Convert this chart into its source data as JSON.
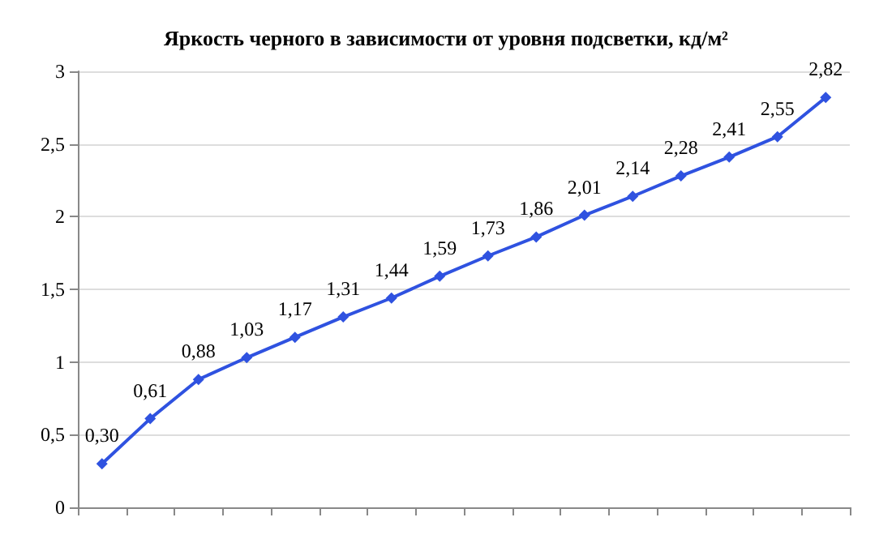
{
  "chart_data": {
    "type": "line",
    "title": "Яркость черного в зависимости от уровня подсветки, кд/м²",
    "categories": [
      null,
      null,
      null,
      null,
      null,
      null,
      null,
      null,
      null,
      null,
      null,
      null,
      null,
      null,
      null,
      null
    ],
    "series": [
      {
        "color": "#2f52e0",
        "values": [
          0.3,
          0.61,
          0.88,
          1.03,
          1.17,
          1.31,
          1.44,
          1.59,
          1.73,
          1.86,
          2.01,
          2.14,
          2.28,
          2.41,
          2.55,
          2.82
        ],
        "value_labels": [
          "0,30",
          "0,61",
          "0,88",
          "1,03",
          "1,17",
          "1,31",
          "1,44",
          "1,59",
          "1,73",
          "1,86",
          "2,01",
          "2,14",
          "2,28",
          "2,41",
          "2,55",
          "2,82"
        ]
      }
    ],
    "ylim": [
      0,
      3
    ],
    "yticks": [
      0,
      {
        "value": 0.5,
        "label": "0,5"
      },
      1,
      {
        "value": 1.5,
        "label": "1,5"
      },
      2,
      {
        "value": 2.5,
        "label": "2,5"
      },
      3
    ],
    "grid": "y",
    "tick_labels": "y",
    "marker": "diamond",
    "line_style": "solid"
  }
}
